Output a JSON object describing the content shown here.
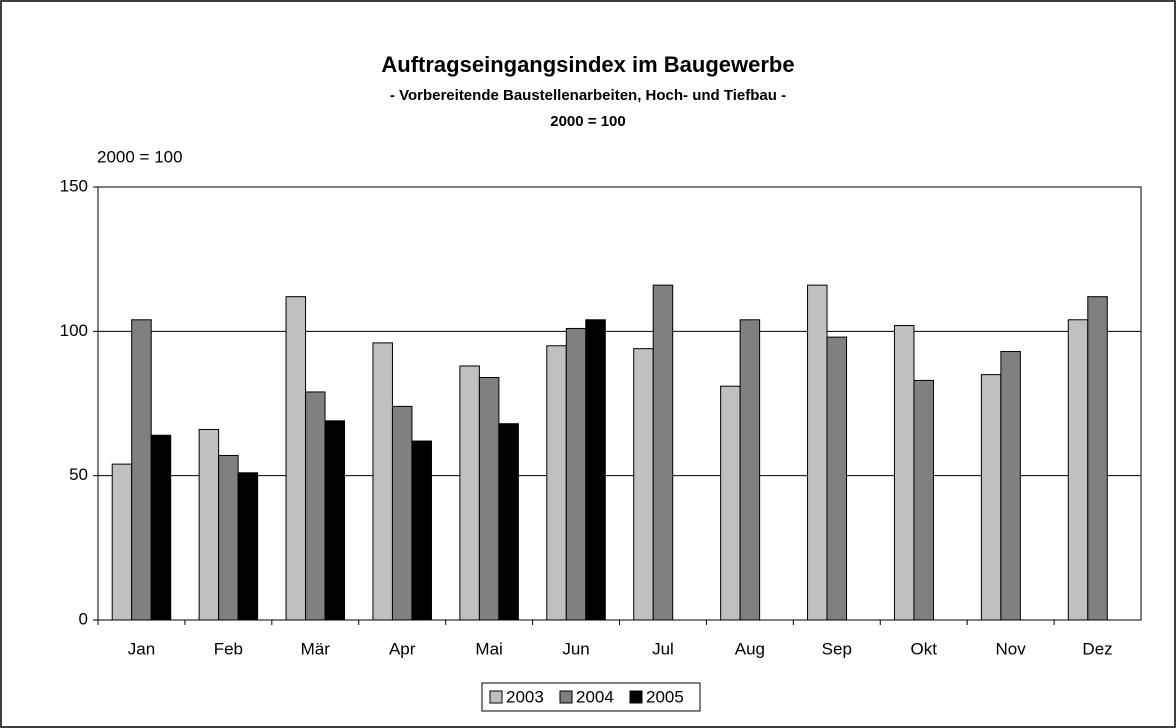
{
  "chart_data": {
    "type": "bar",
    "title": "Auftragseingangsindex im Baugewerbe",
    "subtitle": "- Vorbereitende Baustellenarbeiten, Hoch- und Tiefbau -",
    "subtitle2": "2000 = 100",
    "y_label": "2000 = 100",
    "categories": [
      "Jan",
      "Feb",
      "Mär",
      "Apr",
      "Mai",
      "Jun",
      "Jul",
      "Aug",
      "Sep",
      "Okt",
      "Nov",
      "Dez"
    ],
    "series": [
      {
        "name": "2003",
        "color": "#c0c0c0",
        "values": [
          54,
          66,
          112,
          96,
          88,
          95,
          94,
          81,
          116,
          102,
          85,
          104
        ]
      },
      {
        "name": "2004",
        "color": "#808080",
        "values": [
          104,
          57,
          79,
          74,
          84,
          101,
          116,
          104,
          98,
          83,
          93,
          112
        ]
      },
      {
        "name": "2005",
        "color": "#000000",
        "values": [
          64,
          51,
          69,
          62,
          68,
          104,
          null,
          null,
          null,
          null,
          null,
          null
        ]
      }
    ],
    "ylim": [
      0,
      150
    ],
    "yticks": [
      0,
      50,
      100,
      150
    ],
    "grid": true
  }
}
